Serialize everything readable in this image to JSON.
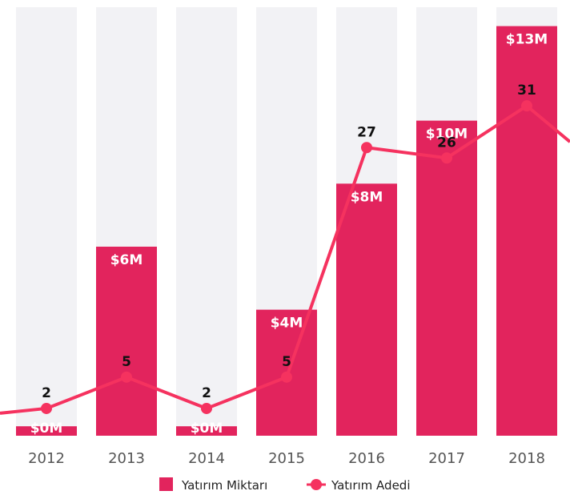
{
  "colors": {
    "bar": "#e2245d",
    "line": "#f5325f",
    "track": "#f2f2f5",
    "background": "#ffffff"
  },
  "chart_data": {
    "type": "bar",
    "categories": [
      "2012",
      "2013",
      "2014",
      "2015",
      "2016",
      "2017",
      "2018"
    ],
    "series": [
      {
        "name": "Yatırım Miktarı",
        "type": "bar",
        "values": [
          0.3,
          6,
          0.3,
          4,
          8,
          10,
          13
        ],
        "labels": [
          "$0M",
          "$6M",
          "$0M",
          "$4M",
          "$8M",
          "$10M",
          "$13M"
        ]
      },
      {
        "name": "Yatırım Adedi",
        "type": "line",
        "values": [
          2,
          5,
          2,
          5,
          27,
          26,
          31
        ],
        "labels": [
          "2",
          "5",
          "2",
          "5",
          "27",
          "26",
          "31"
        ]
      }
    ],
    "ylim_bar": [
      0,
      13.6
    ],
    "ylim_line": [
      0,
      36
    ],
    "legend_position": "bottom",
    "grid": false
  }
}
